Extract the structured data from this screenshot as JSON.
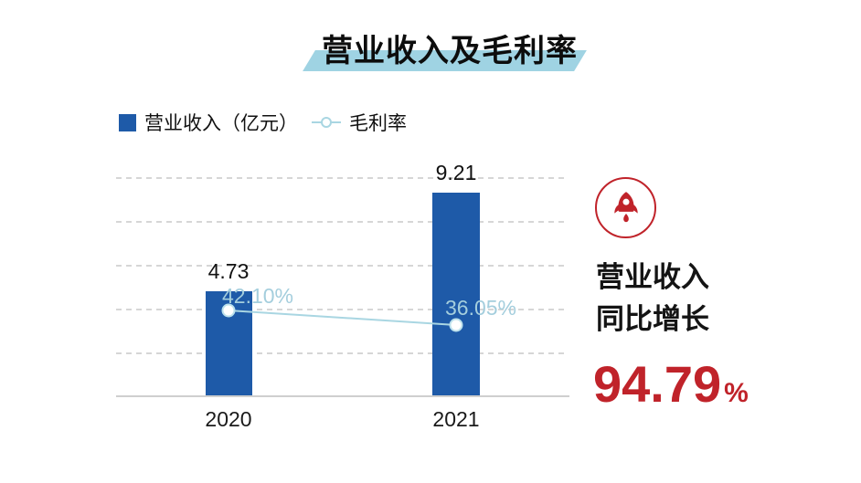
{
  "title": {
    "text": "营业收入及毛利率"
  },
  "legend": {
    "items": [
      {
        "label": "营业收入（亿元）",
        "marker": "bar-swatch",
        "color": "#1e5aa8"
      },
      {
        "label": "毛利率",
        "marker": "line-circle",
        "color": "#a9d6e2"
      }
    ]
  },
  "chart_data": {
    "type": "bar",
    "categories": [
      "2020",
      "2021"
    ],
    "series": [
      {
        "name": "营业收入（亿元）",
        "type": "bar",
        "values": [
          4.73,
          9.21
        ],
        "labels": [
          "4.73",
          "9.21"
        ],
        "color": "#1e5aa8"
      },
      {
        "name": "毛利率",
        "type": "line",
        "values": [
          42.1,
          36.05
        ],
        "labels": [
          "42.10%",
          "36.05%"
        ],
        "color": "#a9d6e2"
      }
    ],
    "title": "营业收入及毛利率",
    "xlabel": "",
    "ylabel": "",
    "ylim": [
      0,
      10
    ],
    "grid": "horizontal-dashed",
    "legend_position": "top-left"
  },
  "kpi_panel": {
    "icon": "rocket-icon",
    "accent_color": "#c0232a",
    "line1": "营业收入",
    "line2": "同比增长",
    "value": "94.79",
    "unit": "%"
  },
  "colors": {
    "bar_blue": "#1e5aa8",
    "line_light_blue": "#a9d6e2",
    "title_highlight": "#9fd3e3",
    "kpi_red": "#c0232a",
    "gridline_gray": "#d6d6d6"
  }
}
